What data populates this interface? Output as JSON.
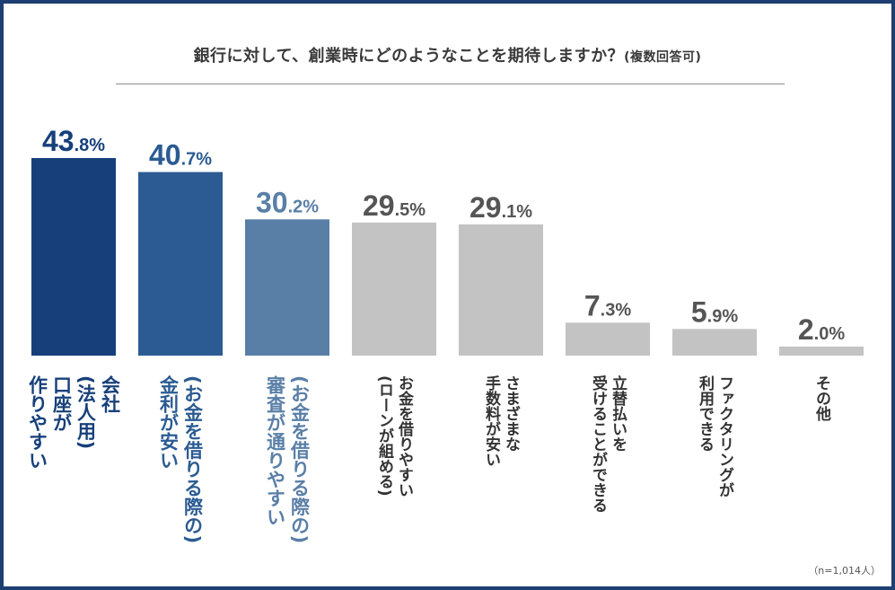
{
  "title": "銀行に対して、創業時にどのようなことを期待しますか？",
  "subtitle": "(複数回答可)",
  "note": "（n=1,014人）",
  "colors": {
    "frame": "#1d3f72",
    "series": [
      "#17407a",
      "#2b5b92",
      "#5a7fa7",
      "#c3c3c3",
      "#c3c3c3",
      "#c3c3c3",
      "#c3c3c3",
      "#c3c3c3"
    ],
    "pct_text": [
      "#17407a",
      "#2b5b92",
      "#5a7fa7",
      "#555555",
      "#555555",
      "#555555",
      "#555555",
      "#555555"
    ],
    "label_text": [
      "#17407a",
      "#2b5b92",
      "#5a7fa7",
      "#333333",
      "#333333",
      "#333333",
      "#333333",
      "#333333"
    ]
  },
  "chart_data": {
    "type": "bar",
    "title": "銀行に対して、創業時にどのようなことを期待しますか？(複数回答可)",
    "xlabel": "",
    "ylabel": "",
    "ylim": [
      0,
      45
    ],
    "unit": "%",
    "values": [
      43.8,
      40.7,
      30.2,
      29.5,
      29.1,
      7.3,
      5.9,
      2.0
    ],
    "value_int": [
      "43",
      "40",
      "30",
      "29",
      "29",
      "7",
      "5",
      "2"
    ],
    "value_dec": [
      ".8%",
      ".7%",
      ".2%",
      ".5%",
      ".1%",
      ".3%",
      ".9%",
      ".0%"
    ],
    "categories": [
      "会社(法人用)口座が作りやすい",
      "(お金を借りる際の)金利が安い",
      "(お金を借りる際の)審査が通りやすい",
      "お金を借りやすい(ローンが組める)",
      "さまざまな手数料が安い",
      "立替払いを受けることができる",
      "ファクタリングが利用できる",
      "その他"
    ],
    "label_lines": [
      [
        "会社",
        "(法人用)",
        "口座が",
        "作りやすい"
      ],
      [
        "(お金を借りる際の)",
        "金利が安い"
      ],
      [
        "(お金を借りる際の)",
        "審査が通りやすい"
      ],
      [
        "お金を借りやすい",
        "(ローンが組める)"
      ],
      [
        "さまざまな",
        "手数料が安い"
      ],
      [
        "立替払いを",
        "受けることができる"
      ],
      [
        "ファクタリングが",
        "利用できる"
      ],
      [
        "その他"
      ]
    ]
  }
}
